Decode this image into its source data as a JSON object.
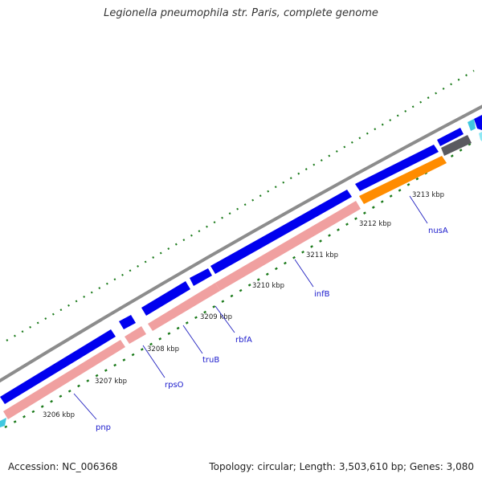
{
  "title": "Legionella pneumophila str. Paris, complete genome",
  "footer": {
    "accession": "Accession: NC_006368",
    "topology": "Topology: circular; Length: 3,503,610 bp; Genes: 3,080"
  },
  "ticks": [
    "3206 kbp",
    "3207 kbp",
    "3208 kbp",
    "3209 kbp",
    "3210 kbp",
    "3211 kbp",
    "3212 kbp",
    "3213 kbp"
  ],
  "genes": [
    "pnp",
    "rpsO",
    "truB",
    "rbfA",
    "infB",
    "nusA"
  ],
  "colors": {
    "backbone": "#8c8c8c",
    "cds": "#0000ee",
    "rrna_like": "#f0a0a0",
    "highlight": "#ff8c00",
    "gray_feature": "#5a5a60",
    "gc_dots": "#1a7a1a",
    "label_line": "#2020c0",
    "cyan": "#40c8e0"
  }
}
